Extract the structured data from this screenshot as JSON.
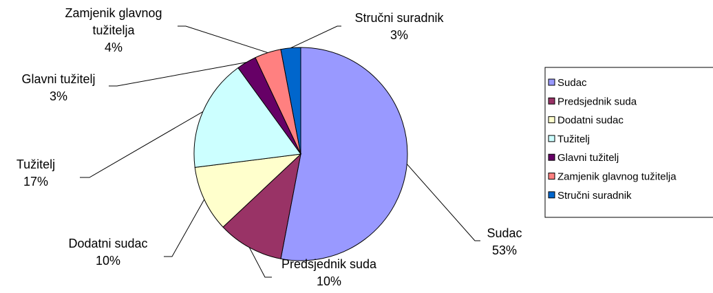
{
  "chart_data": {
    "type": "pie",
    "categories": [
      "Sudac",
      "Predsjednik suda",
      "Dodatni sudac",
      "Tužitelj",
      "Glavni tužitelj",
      "Zamjenik glavnog tužitelja",
      "Stručni suradnik"
    ],
    "values": [
      53,
      10,
      10,
      17,
      3,
      4,
      3
    ],
    "value_labels": [
      "53%",
      "10%",
      "10%",
      "17%",
      "3%",
      "4%",
      "3%"
    ],
    "colors": [
      "#9999ff",
      "#993366",
      "#ffffcc",
      "#ccffff",
      "#660066",
      "#ff8080",
      "#0066cc"
    ],
    "legend": "right"
  }
}
